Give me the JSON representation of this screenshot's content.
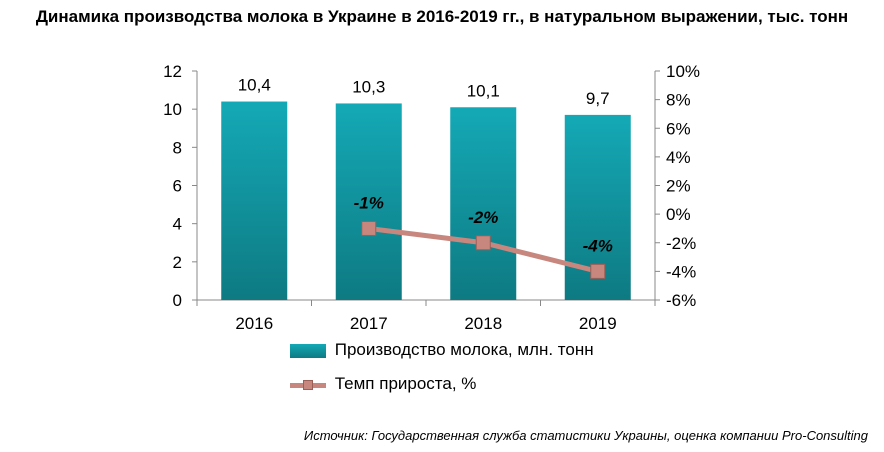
{
  "title": "Динамика производства молока в Украине в 2016-2019 гг., в натуральном выражении, тыс. тонн",
  "source": "Источник: Государственная служба статистики Украины, оценка компании Pro-Consulting",
  "legend": {
    "bars": "Производство молока, млн. тонн",
    "line": "Темп прироста, %"
  },
  "chart_data": {
    "type": "bar",
    "categories": [
      "2016",
      "2017",
      "2018",
      "2019"
    ],
    "series": [
      {
        "name": "Производство молока, млн. тонн",
        "type": "bar",
        "axis": "left",
        "values": [
          10.4,
          10.3,
          10.1,
          9.7
        ],
        "labels": [
          "10,4",
          "10,3",
          "10,1",
          "9,7"
        ],
        "color": "#1a9aa6"
      },
      {
        "name": "Темп прироста, %",
        "type": "line",
        "axis": "right",
        "values": [
          null,
          -1,
          -2,
          -4
        ],
        "labels": [
          "",
          "-1%",
          "-2%",
          "-4%"
        ],
        "color": "#c8877e"
      }
    ],
    "y_left": {
      "min": 0,
      "max": 12,
      "ticks": [
        "0",
        "2",
        "4",
        "6",
        "8",
        "10",
        "12"
      ]
    },
    "y_right": {
      "min": -6,
      "max": 10,
      "ticks": [
        "-6%",
        "-4%",
        "-2%",
        "0%",
        "2%",
        "4%",
        "6%",
        "8%",
        "10%"
      ]
    },
    "grid": false
  }
}
